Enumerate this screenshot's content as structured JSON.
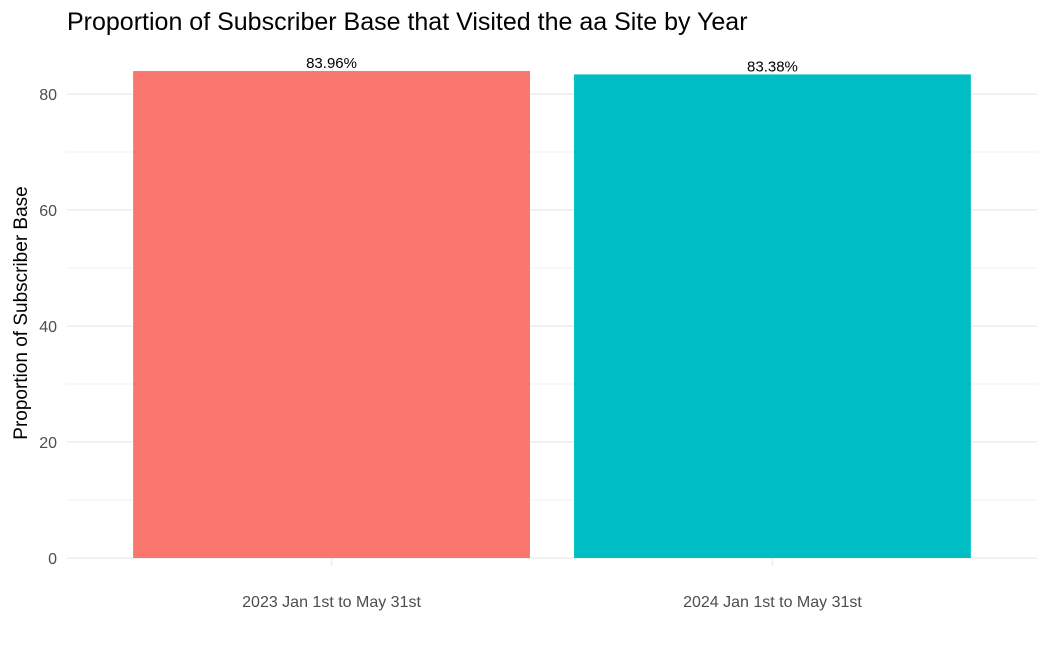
{
  "chart_data": {
    "type": "bar",
    "title": "Proportion of Subscriber Base that Visited the aa Site by Year",
    "xlabel": "",
    "ylabel": "Proportion of Subscriber Base",
    "categories": [
      "2023 Jan 1st to May 31st",
      "2024 Jan 1st to May 31st"
    ],
    "values": [
      83.96,
      83.38
    ],
    "data_labels": [
      "83.96%",
      "83.38%"
    ],
    "colors": [
      "#F8766D",
      "#00BFC4"
    ],
    "ylim": [
      0,
      84
    ],
    "y_ticks": [
      0,
      20,
      40,
      60,
      80
    ],
    "y_tick_labels": [
      "0",
      "20",
      "40",
      "60",
      "80"
    ],
    "grid": true,
    "legend": "none",
    "gridline_color": "#ebebeb",
    "axis_text_color": "#4d4d4d"
  }
}
